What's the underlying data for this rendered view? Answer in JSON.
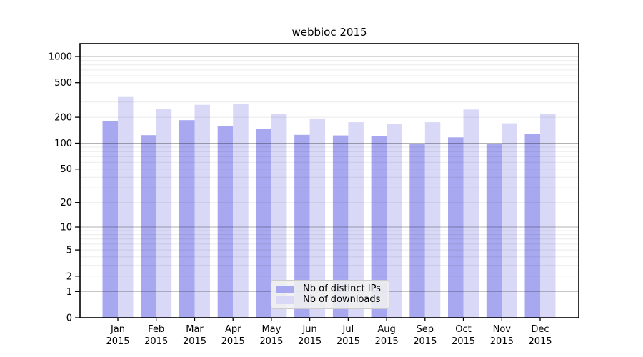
{
  "chart_data": {
    "type": "bar",
    "title": "webbioc 2015",
    "categories": [
      "Jan",
      "Feb",
      "Mar",
      "Apr",
      "May",
      "Jun",
      "Jul",
      "Aug",
      "Sep",
      "Oct",
      "Nov",
      "Dec"
    ],
    "x_tick_second_line": "2015",
    "series": [
      {
        "name": "Nb of distinct IPs",
        "color": "#a8a8f0",
        "values": [
          180,
          124,
          185,
          157,
          146,
          125,
          123,
          120,
          99,
          117,
          99,
          127
        ]
      },
      {
        "name": "Nb of downloads",
        "color": "#d9d9f7",
        "values": [
          342,
          248,
          278,
          282,
          216,
          193,
          175,
          168,
          175,
          245,
          170,
          220
        ]
      }
    ],
    "y_ticks": [
      0,
      1,
      2,
      5,
      10,
      20,
      50,
      100,
      200,
      500,
      1000
    ],
    "y_scale": "log1p",
    "ylim": [
      0,
      1400
    ],
    "grid": true,
    "legend_position": "lower-center-inside",
    "axis_color": "#000000"
  }
}
